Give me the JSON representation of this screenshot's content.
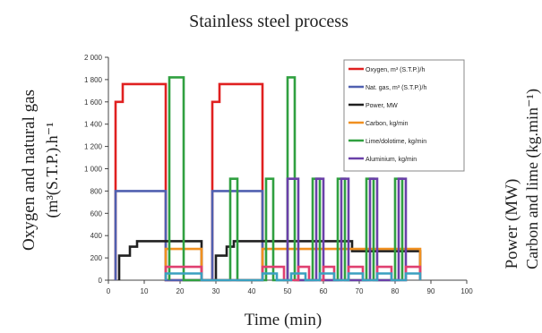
{
  "chart_data": {
    "type": "line",
    "title": "Stainless steel process",
    "xlabel": "Time (min)",
    "ylabel_left_line1": "Oxygen and natural gas",
    "ylabel_left_line2": "(m³(S.T.P.).h⁻¹",
    "ylabel_right_line1": "Power (MW)",
    "ylabel_right_line2": "Carbon and lime (kg.min⁻¹)",
    "xlim": [
      0,
      100
    ],
    "ylim": [
      0,
      2000
    ],
    "x_ticks": [
      "0",
      "10",
      "20",
      "30",
      "40",
      "50",
      "60",
      "70",
      "80",
      "90",
      "100"
    ],
    "y_ticks": [
      "0",
      "200",
      "400",
      "600",
      "800",
      "1 000",
      "1 200",
      "1 400",
      "1 600",
      "1 800",
      "2 000"
    ],
    "legend_position": "top-right",
    "series": [
      {
        "name": "Oxygen, m³ (S.T.P.)/h",
        "color": "#e02020",
        "x": [
          2,
          2,
          4,
          4,
          16,
          16,
          29,
          29,
          31,
          31,
          43,
          43
        ],
        "y": [
          0,
          1600,
          1600,
          1760,
          1760,
          0,
          0,
          1600,
          1600,
          1760,
          1760,
          0
        ]
      },
      {
        "name": "Nat. gas, m³ (S.T.P.)/h",
        "color": "#5060b0",
        "x": [
          2,
          2,
          16,
          16,
          29,
          29,
          43,
          43
        ],
        "y": [
          0,
          800,
          800,
          0,
          0,
          800,
          800,
          0
        ]
      },
      {
        "name": "Power, MW",
        "color": "#202020",
        "x": [
          3,
          3,
          6,
          6,
          8,
          8,
          26,
          26,
          30,
          30,
          33,
          33,
          35,
          35,
          68,
          68,
          87,
          87
        ],
        "y": [
          0,
          220,
          220,
          300,
          300,
          350,
          350,
          0,
          0,
          220,
          220,
          300,
          300,
          350,
          350,
          260,
          260,
          0
        ]
      },
      {
        "name": "Carbon, kg/min",
        "color": "#f09020",
        "x": [
          16,
          16,
          26,
          26,
          43,
          43,
          87,
          87
        ],
        "y": [
          0,
          280,
          280,
          0,
          0,
          280,
          280,
          0
        ]
      },
      {
        "name": "Lime/dolotime, kg/min",
        "color": "#30a040",
        "x": [
          17,
          17,
          21,
          21,
          34,
          34,
          36,
          36,
          44,
          44,
          46,
          46,
          50,
          50,
          52,
          52,
          57,
          57,
          59,
          59,
          64,
          64,
          66,
          66,
          72,
          72,
          74,
          74,
          80,
          80,
          82,
          82
        ],
        "y": [
          0,
          1820,
          1820,
          0,
          0,
          910,
          910,
          0,
          0,
          910,
          910,
          0,
          0,
          1820,
          1820,
          0,
          0,
          910,
          910,
          0,
          0,
          910,
          910,
          0,
          0,
          910,
          910,
          0,
          0,
          910,
          910,
          0
        ]
      },
      {
        "name": "Aluminium, kg/min",
        "color": "#6a40a8",
        "x": [
          50,
          50,
          53,
          53,
          58,
          58,
          60,
          60,
          65,
          65,
          67,
          67,
          73,
          73,
          75,
          75,
          81,
          81,
          83,
          83
        ],
        "y": [
          0,
          910,
          910,
          0,
          0,
          910,
          910,
          0,
          0,
          910,
          910,
          0,
          0,
          910,
          910,
          0,
          0,
          910,
          910,
          0
        ]
      },
      {
        "name": "",
        "color": "#e04070",
        "x": [
          16,
          16,
          26,
          26,
          43,
          43,
          49,
          49,
          53,
          53,
          56,
          56,
          60,
          60,
          63,
          63,
          67,
          67,
          71,
          71,
          75,
          75,
          79,
          79,
          83,
          83,
          87,
          87
        ],
        "y": [
          0,
          120,
          120,
          0,
          0,
          120,
          120,
          0,
          0,
          120,
          120,
          0,
          0,
          120,
          120,
          0,
          0,
          120,
          120,
          0,
          0,
          120,
          120,
          0,
          0,
          120,
          120,
          0
        ]
      },
      {
        "name": "",
        "color": "#3aa0c0",
        "x": [
          16,
          16,
          26,
          26,
          43,
          43,
          47,
          47,
          51,
          51,
          55,
          55,
          59,
          59,
          63,
          63,
          67,
          67,
          71,
          71,
          75,
          75,
          79,
          79,
          83,
          83,
          87,
          87
        ],
        "y": [
          0,
          60,
          60,
          0,
          0,
          60,
          60,
          0,
          0,
          60,
          60,
          0,
          0,
          60,
          60,
          0,
          0,
          60,
          60,
          0,
          0,
          60,
          60,
          0,
          0,
          60,
          60,
          0
        ]
      }
    ]
  }
}
